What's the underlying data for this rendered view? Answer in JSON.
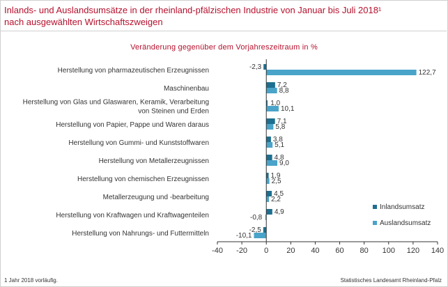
{
  "title_line1": "Inlands- und Auslandsumsätze in der rheinland-pfälzischen Industrie von Januar bis Juli 2018¹",
  "title_line2": "nach ausgewählten Wirtschaftszweigen",
  "footnote": "1 Jahr 2018 vorläufig.",
  "source": "Statistisches Landesamt Rheinland-Pfalz",
  "colors": {
    "title": "#b5112d",
    "inland": "#1e6f8f",
    "ausland": "#4aa3c8",
    "axis": "#333333"
  },
  "chart_data": {
    "type": "bar",
    "orientation": "horizontal",
    "subtitle": "Veränderung gegenüber dem Vorjahreszeitraum in %",
    "categories": [
      [
        "Herstellung von pharmazeutischen Erzeugnissen"
      ],
      [
        "Maschinenbau"
      ],
      [
        "Herstellung von Glas und Glaswaren, Keramik, Verarbeitung",
        "von Steinen und Erden"
      ],
      [
        "Herstellung von Papier, Pappe und Waren daraus"
      ],
      [
        "Herstellung von Gummi- und Kunststoffwaren"
      ],
      [
        "Herstellung von Metallerzeugnissen"
      ],
      [
        "Herstellung von chemischen Erzeugnissen"
      ],
      [
        "Metallerzeugung und -bearbeitung"
      ],
      [
        "Herstellung von Kraftwagen und Kraftwagenteilen"
      ],
      [
        "Herstellung von Nahrungs- und Futtermitteln"
      ]
    ],
    "series": [
      {
        "name": "Inlandsumsatz",
        "values": [
          -2.3,
          7.2,
          1.0,
          7.1,
          3.8,
          4.8,
          1.9,
          4.5,
          4.9,
          -2.5
        ],
        "labels": [
          "-2,3",
          "7,2",
          "1,0",
          "7,1",
          "3,8",
          "4,8",
          "1,9",
          "4,5",
          "4,9",
          "-2,5"
        ]
      },
      {
        "name": "Auslandsumsatz",
        "values": [
          122.7,
          8.8,
          10.1,
          5.8,
          5.1,
          9.0,
          2.5,
          2.2,
          -0.8,
          -10.1
        ],
        "labels": [
          "122,7",
          "8,8",
          "10,1",
          "5,8",
          "5,1",
          "9,0",
          "2,5",
          "2,2",
          "-0,8",
          "-10,1"
        ]
      }
    ],
    "xlim": [
      -40,
      140
    ],
    "xticks": [
      -40,
      -20,
      0,
      20,
      40,
      60,
      80,
      100,
      120,
      140
    ],
    "xtick_labels": [
      "-40",
      "-20",
      "0",
      "20",
      "40",
      "60",
      "80",
      "100",
      "120",
      "140"
    ],
    "grid": false,
    "legend_position": "bottom-right"
  }
}
